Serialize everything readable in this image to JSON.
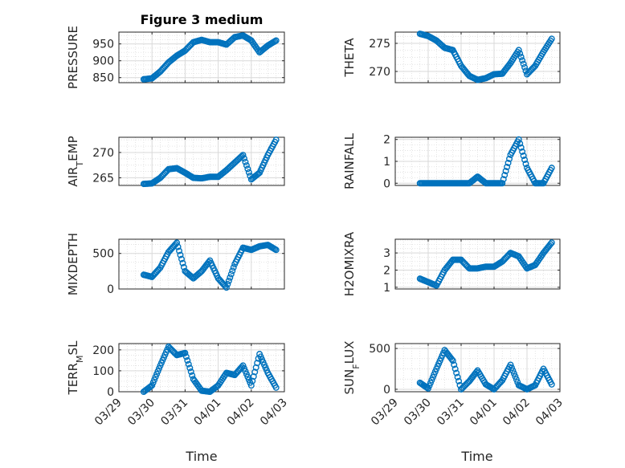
{
  "figure": {
    "title": "Figure 3 medium",
    "xlabel": "Time"
  },
  "colors": {
    "marker": "#0072BD",
    "axis": "#262626",
    "grid": "#d9d9d9"
  },
  "chart_data": [
    {
      "type": "scatter",
      "name": "pressure",
      "ylabel": "PRESSURE",
      "ylim": [
        835,
        985
      ],
      "yticks": [
        850,
        900,
        950
      ],
      "xlim": [
        "03/29",
        "04/03"
      ],
      "xticks": [
        "03/29",
        "03/30",
        "03/31",
        "04/01",
        "04/02",
        "04/03"
      ],
      "grid": true,
      "marker": "circle",
      "x": [
        "03/29 18:00",
        "03/30 00:00",
        "03/30 06:00",
        "03/30 12:00",
        "03/30 18:00",
        "03/31 00:00",
        "03/31 06:00",
        "03/31 12:00",
        "03/31 18:00",
        "04/01 00:00",
        "04/01 06:00",
        "04/01 12:00",
        "04/01 18:00",
        "04/02 00:00",
        "04/02 06:00",
        "04/02 12:00",
        "04/02 18:00"
      ],
      "y": [
        845,
        848,
        868,
        895,
        915,
        930,
        955,
        962,
        955,
        955,
        948,
        970,
        975,
        960,
        925,
        945,
        960
      ]
    },
    {
      "type": "scatter",
      "name": "theta",
      "ylabel": "THETA",
      "ylim": [
        268,
        277
      ],
      "yticks": [
        270,
        275
      ],
      "xlim": [
        "03/29",
        "04/03"
      ],
      "xticks": [
        "03/29",
        "03/30",
        "03/31",
        "04/01",
        "04/02",
        "04/03"
      ],
      "grid": true,
      "marker": "circle",
      "x": [
        "03/29 18:00",
        "03/30 00:00",
        "03/30 06:00",
        "03/30 12:00",
        "03/30 18:00",
        "03/31 00:00",
        "03/31 06:00",
        "03/31 12:00",
        "03/31 18:00",
        "04/01 00:00",
        "04/01 06:00",
        "04/01 12:00",
        "04/01 18:00",
        "04/02 00:00",
        "04/02 06:00",
        "04/02 12:00",
        "04/02 18:00"
      ],
      "y": [
        276.7,
        276.3,
        275.5,
        274.2,
        273.8,
        271,
        269.2,
        268.5,
        268.8,
        269.5,
        269.6,
        271.5,
        273.8,
        269.5,
        271,
        273.5,
        275.8
      ]
    },
    {
      "type": "scatter",
      "name": "air_temp",
      "ylabel": "AIR_TEMP",
      "ylim": [
        263.5,
        273
      ],
      "yticks": [
        265,
        270
      ],
      "xlim": [
        "03/29",
        "04/03"
      ],
      "xticks": [
        "03/29",
        "03/30",
        "03/31",
        "04/01",
        "04/02",
        "04/03"
      ],
      "grid": true,
      "marker": "circle",
      "x": [
        "03/29 18:00",
        "03/30 00:00",
        "03/30 06:00",
        "03/30 12:00",
        "03/30 18:00",
        "03/31 00:00",
        "03/31 06:00",
        "03/31 12:00",
        "03/31 18:00",
        "04/01 00:00",
        "04/01 06:00",
        "04/01 12:00",
        "04/01 18:00",
        "04/02 00:00",
        "04/02 06:00",
        "04/02 12:00",
        "04/02 18:00"
      ],
      "y": [
        263.8,
        263.9,
        265,
        266.7,
        266.9,
        266,
        265,
        264.9,
        265.2,
        265.2,
        266.5,
        268,
        269.5,
        264.7,
        266,
        269.5,
        272.5
      ]
    },
    {
      "type": "scatter",
      "name": "rainfall",
      "ylabel": "RAINFALL",
      "ylim": [
        -0.1,
        2.1
      ],
      "yticks": [
        0,
        1,
        2
      ],
      "xlim": [
        "03/29",
        "04/03"
      ],
      "xticks": [
        "03/29",
        "03/30",
        "03/31",
        "04/01",
        "04/02",
        "04/03"
      ],
      "grid": true,
      "marker": "circle",
      "x": [
        "03/29 18:00",
        "03/30 00:00",
        "03/30 06:00",
        "03/30 12:00",
        "03/30 18:00",
        "03/31 00:00",
        "03/31 06:00",
        "03/31 12:00",
        "03/31 18:00",
        "04/01 00:00",
        "04/01 06:00",
        "04/01 12:00",
        "04/01 18:00",
        "04/02 00:00",
        "04/02 06:00",
        "04/02 12:00",
        "04/02 18:00"
      ],
      "y": [
        0,
        0,
        0,
        0,
        0,
        0,
        0,
        0.3,
        0,
        0,
        0,
        1.3,
        2,
        0.7,
        0,
        0,
        0.7
      ]
    },
    {
      "type": "scatter",
      "name": "mixdepth",
      "ylabel": "MIXDEPTH",
      "ylim": [
        0,
        700
      ],
      "yticks": [
        0,
        500
      ],
      "xlim": [
        "03/29",
        "04/03"
      ],
      "xticks": [
        "03/29",
        "03/30",
        "03/31",
        "04/01",
        "04/02",
        "04/03"
      ],
      "grid": true,
      "marker": "circle",
      "x": [
        "03/29 18:00",
        "03/30 00:00",
        "03/30 06:00",
        "03/30 12:00",
        "03/30 18:00",
        "03/31 00:00",
        "03/31 06:00",
        "03/31 12:00",
        "03/31 18:00",
        "04/01 00:00",
        "04/01 06:00",
        "04/01 12:00",
        "04/01 18:00",
        "04/02 00:00",
        "04/02 06:00",
        "04/02 12:00",
        "04/02 18:00"
      ],
      "y": [
        200,
        170,
        300,
        520,
        650,
        250,
        150,
        250,
        400,
        150,
        20,
        350,
        580,
        550,
        600,
        620,
        550
      ]
    },
    {
      "type": "scatter",
      "name": "h2omixra",
      "ylabel": "H2OMIXRA",
      "ylim": [
        0.9,
        3.8
      ],
      "yticks": [
        1,
        2,
        3
      ],
      "xlim": [
        "03/29",
        "04/03"
      ],
      "xticks": [
        "03/29",
        "03/30",
        "03/31",
        "04/01",
        "04/02",
        "04/03"
      ],
      "grid": true,
      "marker": "circle",
      "x": [
        "03/29 18:00",
        "03/30 00:00",
        "03/30 06:00",
        "03/30 12:00",
        "03/30 18:00",
        "03/31 00:00",
        "03/31 06:00",
        "03/31 12:00",
        "03/31 18:00",
        "04/01 00:00",
        "04/01 06:00",
        "04/01 12:00",
        "04/01 18:00",
        "04/02 00:00",
        "04/02 06:00",
        "04/02 12:00",
        "04/02 18:00"
      ],
      "y": [
        1.5,
        1.3,
        1.1,
        2,
        2.6,
        2.6,
        2.1,
        2.1,
        2.2,
        2.2,
        2.5,
        3,
        2.8,
        2.1,
        2.3,
        3,
        3.6
      ]
    },
    {
      "type": "scatter",
      "name": "terr_msl",
      "ylabel": "TERR_MSL",
      "ylim": [
        0,
        230
      ],
      "yticks": [
        0,
        100,
        200
      ],
      "xlim": [
        "03/29",
        "04/03"
      ],
      "xticks": [
        "03/29",
        "03/30",
        "03/31",
        "04/01",
        "04/02",
        "04/03"
      ],
      "grid": true,
      "marker": "circle",
      "x": [
        "03/29 18:00",
        "03/30 00:00",
        "03/30 06:00",
        "03/30 12:00",
        "03/30 18:00",
        "03/31 00:00",
        "03/31 06:00",
        "03/31 12:00",
        "03/31 18:00",
        "04/01 00:00",
        "04/01 06:00",
        "04/01 12:00",
        "04/01 18:00",
        "04/02 00:00",
        "04/02 06:00",
        "04/02 12:00",
        "04/02 18:00"
      ],
      "y": [
        0,
        30,
        125,
        215,
        175,
        185,
        60,
        5,
        0,
        30,
        90,
        80,
        125,
        30,
        180,
        90,
        20
      ]
    },
    {
      "type": "scatter",
      "name": "sun_flux",
      "ylabel": "SUN_FLUX",
      "ylim": [
        -30,
        560
      ],
      "yticks": [
        0,
        500
      ],
      "xlim": [
        "03/29",
        "04/03"
      ],
      "xticks": [
        "03/29",
        "03/30",
        "03/31",
        "04/01",
        "04/02",
        "04/03"
      ],
      "grid": true,
      "marker": "circle",
      "x": [
        "03/29 18:00",
        "03/30 00:00",
        "03/30 06:00",
        "03/30 12:00",
        "03/30 18:00",
        "03/31 00:00",
        "03/31 06:00",
        "03/31 12:00",
        "03/31 18:00",
        "04/01 00:00",
        "04/01 06:00",
        "04/01 12:00",
        "04/01 18:00",
        "04/02 00:00",
        "04/02 06:00",
        "04/02 12:00",
        "04/02 18:00"
      ],
      "y": [
        80,
        10,
        250,
        480,
        350,
        0,
        100,
        230,
        60,
        0,
        110,
        300,
        50,
        0,
        50,
        250,
        60
      ]
    }
  ]
}
